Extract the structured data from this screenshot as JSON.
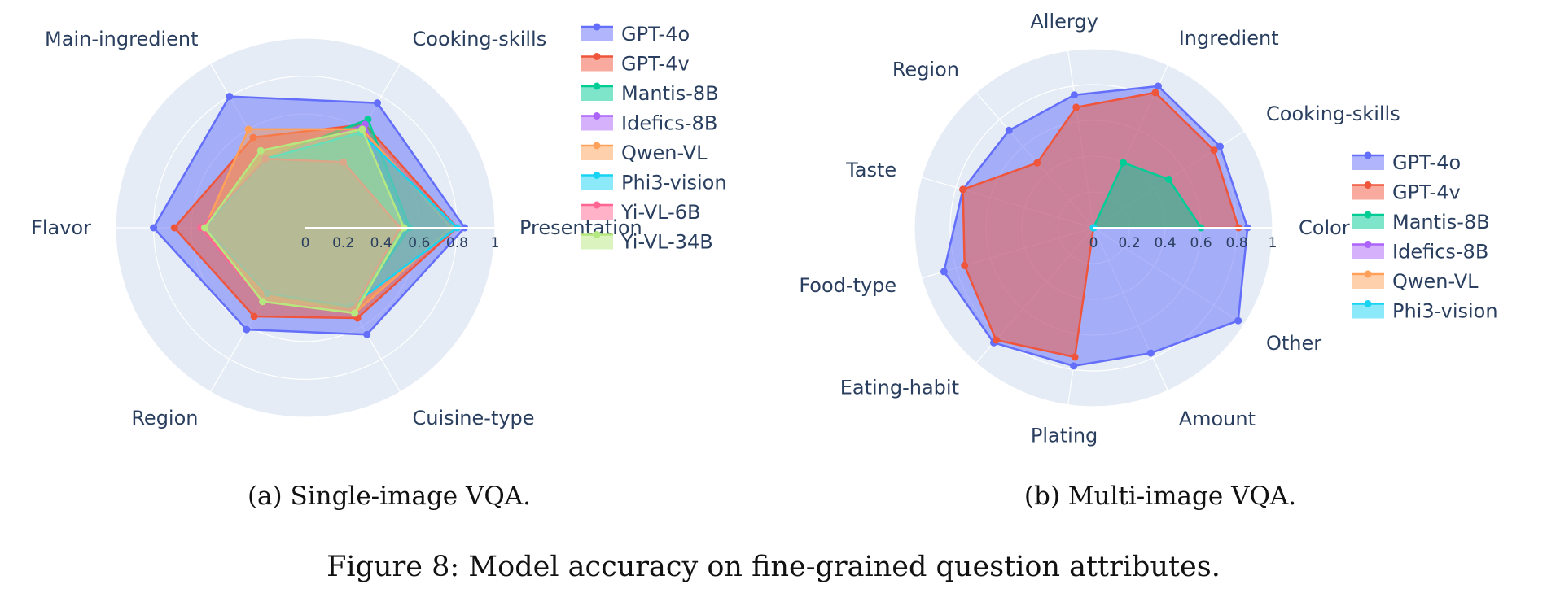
{
  "figure": {
    "caption_a": "(a) Single-image VQA.",
    "caption_b": "(b) Multi-image VQA.",
    "caption": "Figure 8: Model accuracy on fine-grained question attributes."
  },
  "colors": {
    "GPT-4o": "#636efa",
    "GPT-4v": "#ef553b",
    "Mantis-8B": "#00cc96",
    "Idefics-8B": "#ab63fa",
    "Qwen-VL": "#ffa15a",
    "Phi3-vision": "#19d3f3",
    "Yi-VL-6B": "#ff6692",
    "Yi-VL-34B": "#b6e880",
    "polar_bg": "#e5ecf6",
    "grid": "#ffffff"
  },
  "chart_data": [
    {
      "type": "radar",
      "title": "",
      "radial_range": [
        0,
        1
      ],
      "radial_ticks": [
        "0",
        "0.2",
        "0.4",
        "0.6",
        "0.8",
        "1"
      ],
      "grid": true,
      "legend_placement": "top-right",
      "categories": [
        "Presentation",
        "Cooking-skills",
        "Main-ingredient",
        "Flavor",
        "Region",
        "Cuisine-type"
      ],
      "series": [
        {
          "name": "GPT-4o",
          "values": [
            0.84,
            0.76,
            0.8,
            0.8,
            0.62,
            0.65
          ]
        },
        {
          "name": "GPT-4v",
          "values": [
            0.8,
            0.63,
            0.55,
            0.69,
            0.54,
            0.55
          ]
        },
        {
          "name": "Mantis-8B",
          "values": [
            0.55,
            0.66,
            0.42,
            0.53,
            0.4,
            0.5
          ]
        },
        {
          "name": "Idefics-8B",
          "values": [
            0.5,
            0.63,
            0.42,
            0.53,
            0.4,
            0.48
          ]
        },
        {
          "name": "Qwen-VL",
          "values": [
            0.77,
            0.6,
            0.6,
            0.53,
            0.45,
            0.52
          ]
        },
        {
          "name": "Phi3-vision",
          "values": [
            0.8,
            0.58,
            0.42,
            0.53,
            0.4,
            0.48
          ]
        },
        {
          "name": "Yi-VL-6B",
          "values": [
            0.5,
            0.4,
            0.42,
            0.55,
            0.45,
            0.5
          ]
        },
        {
          "name": "Yi-VL-34B",
          "values": [
            0.52,
            0.6,
            0.47,
            0.53,
            0.45,
            0.52
          ]
        }
      ]
    },
    {
      "type": "radar",
      "title": "",
      "radial_range": [
        0,
        1
      ],
      "radial_ticks": [
        "0",
        "0.2",
        "0.4",
        "0.6",
        "0.8",
        "1"
      ],
      "grid": true,
      "legend_placement": "right",
      "categories": [
        "Color",
        "Cooking-skills",
        "Ingredient",
        "Allergy",
        "Region",
        "Taste",
        "Food-type",
        "Eating-habit",
        "Plating",
        "Amount",
        "Other"
      ],
      "series": [
        {
          "name": "GPT-4o",
          "values": [
            0.86,
            0.84,
            0.87,
            0.75,
            0.72,
            0.76,
            0.87,
            0.85,
            0.78,
            0.77,
            0.96
          ]
        },
        {
          "name": "GPT-4v",
          "values": [
            0.81,
            0.8,
            0.83,
            0.68,
            0.48,
            0.76,
            0.75,
            0.83,
            0.73,
            0.0,
            0.0
          ]
        },
        {
          "name": "Mantis-8B",
          "values": [
            0.6,
            0.5,
            0.4,
            0.0,
            0.0,
            0.0,
            0.0,
            0.0,
            0.0,
            0.0,
            0.0
          ]
        },
        {
          "name": "Idefics-8B",
          "values": [
            0.0,
            0.0,
            0.0,
            0.0,
            0.0,
            0.0,
            0.0,
            0.0,
            0.0,
            0.0,
            0.0
          ]
        },
        {
          "name": "Qwen-VL",
          "values": [
            0.0,
            0.0,
            0.0,
            0.0,
            0.0,
            0.0,
            0.0,
            0.0,
            0.0,
            0.0,
            0.0
          ]
        },
        {
          "name": "Phi3-vision",
          "values": [
            0.0,
            0.0,
            0.0,
            0.0,
            0.0,
            0.0,
            0.0,
            0.0,
            0.0,
            0.0,
            0.0
          ]
        }
      ]
    }
  ]
}
